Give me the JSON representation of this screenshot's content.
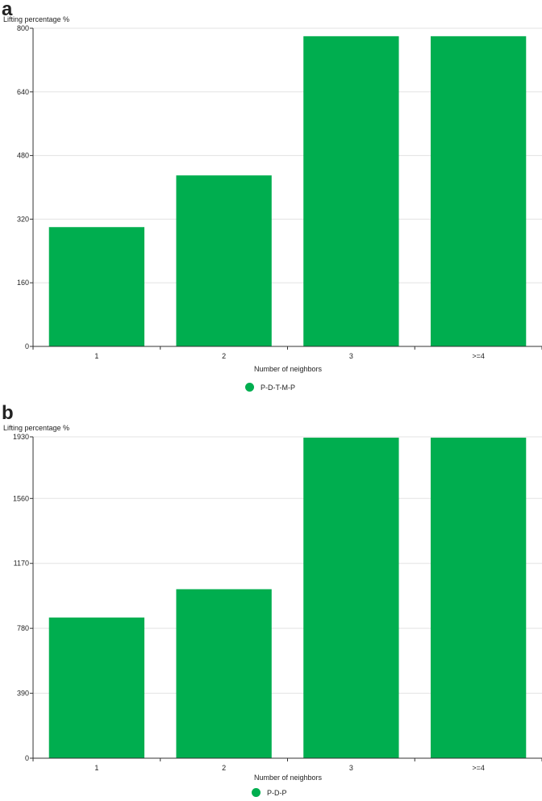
{
  "chart_data": [
    {
      "panel": "a",
      "type": "bar",
      "ylabel": "Lifting percentage %",
      "xlabel": "Number of neighbors",
      "categories": [
        "1",
        "2",
        "3",
        ">=4"
      ],
      "series": [
        {
          "name": "P-D-T-M-P",
          "values": [
            300,
            430,
            780,
            780
          ]
        }
      ],
      "yticks": [
        0,
        160,
        320,
        480,
        640,
        800
      ],
      "ylim": [
        0,
        800
      ],
      "grid": true,
      "legend": "bottom-center",
      "color": "#00ae4f"
    },
    {
      "panel": "b",
      "type": "bar",
      "ylabel": "Lifting percentage %",
      "xlabel": "Number of neighbors",
      "categories": [
        "1",
        "2",
        "3",
        ">=4"
      ],
      "series": [
        {
          "name": "P-D-P",
          "values": [
            845,
            1015,
            1925,
            1925
          ]
        }
      ],
      "yticks": [
        0,
        390,
        780,
        1170,
        1560,
        1930
      ],
      "ylim": [
        0,
        1930
      ],
      "grid": true,
      "legend": "bottom-center",
      "color": "#00ae4f"
    }
  ]
}
